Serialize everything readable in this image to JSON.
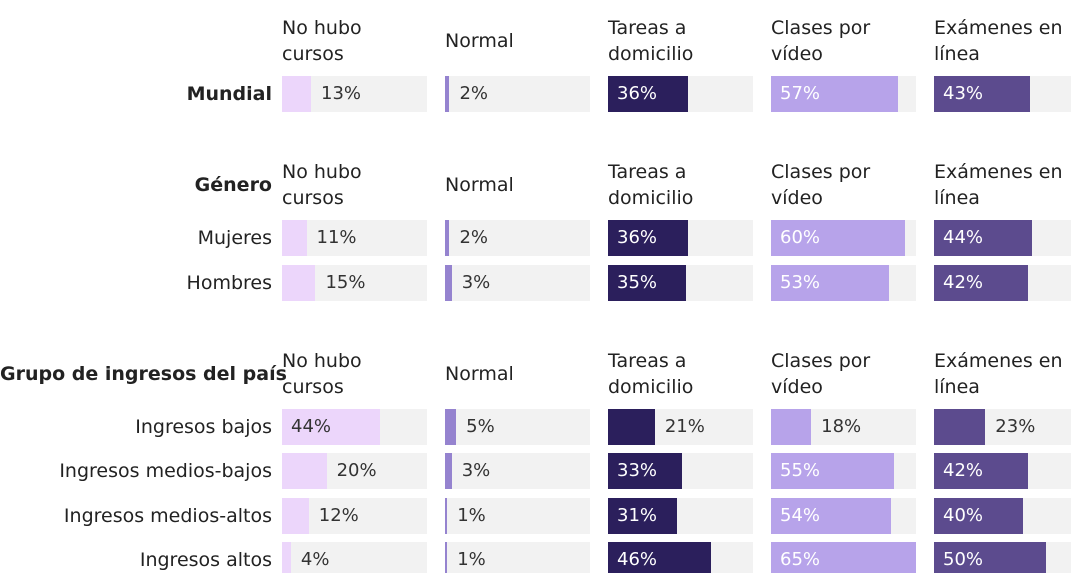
{
  "chart_data": {
    "type": "bar",
    "columns": [
      "No hubo cursos",
      "Normal",
      "Tareas a domicilio",
      "Clases por vídeo",
      "Exámenes en línea"
    ],
    "colors": [
      "#ecd6fb",
      "#9583cf",
      "#2b1f5c",
      "#b7a3ea",
      "#5c4b8e"
    ],
    "xlim": [
      0,
      65
    ],
    "groups": [
      {
        "name": "Mundial",
        "rows": [
          {
            "values": [
              13,
              2,
              36,
              57,
              43
            ],
            "value_labels": [
              "13%",
              "2%",
              "36%",
              "57%",
              "43%"
            ]
          }
        ]
      },
      {
        "name": "Género",
        "rows": [
          {
            "label": "Mujeres",
            "values": [
              11,
              2,
              36,
              60,
              44
            ],
            "value_labels": [
              "11%",
              "2%",
              "36%",
              "60%",
              "44%"
            ]
          },
          {
            "label": "Hombres",
            "values": [
              15,
              3,
              35,
              53,
              42
            ],
            "value_labels": [
              "15%",
              "3%",
              "35%",
              "53%",
              "42%"
            ]
          }
        ]
      },
      {
        "name": "Grupo de ingresos del país",
        "rows": [
          {
            "label": "Ingresos bajos",
            "values": [
              44,
              5,
              21,
              18,
              23
            ],
            "value_labels": [
              "44%",
              "5%",
              "21%",
              "18%",
              "23%"
            ]
          },
          {
            "label": "Ingresos medios-bajos",
            "values": [
              20,
              3,
              33,
              55,
              42
            ],
            "value_labels": [
              "20%",
              "3%",
              "33%",
              "55%",
              "42%"
            ]
          },
          {
            "label": "Ingresos medios-altos",
            "values": [
              12,
              1,
              31,
              54,
              40
            ],
            "value_labels": [
              "12%",
              "1%",
              "31%",
              "54%",
              "40%"
            ]
          },
          {
            "label": "Ingresos altos",
            "values": [
              4,
              1,
              46,
              65,
              50
            ],
            "value_labels": [
              "4%",
              "1%",
              "46%",
              "65%",
              "50%"
            ]
          }
        ]
      }
    ]
  }
}
